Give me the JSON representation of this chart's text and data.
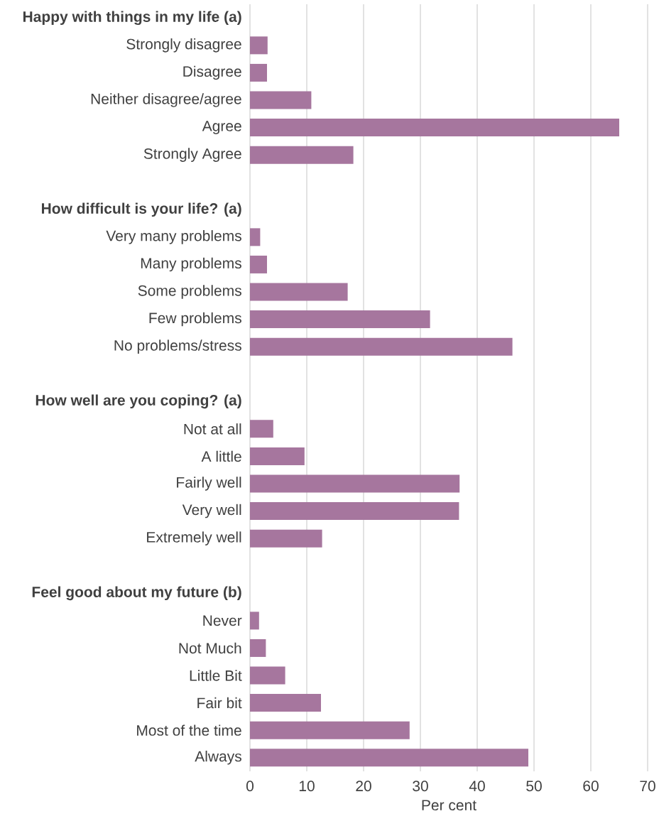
{
  "chart_data": {
    "type": "bar",
    "orientation": "horizontal",
    "xlabel": "Per cent",
    "color": "#a6769e",
    "categories": [
      "Happy with things in my life (a)",
      "Strongly disagree",
      "Disagree",
      "Neither disagree/agree",
      "Agree",
      "Strongly Agree",
      null,
      "How difficult is your life? (a)",
      "Very many problems",
      "Many problems",
      "Some problems",
      "Few problems",
      "No problems/stress",
      null,
      "How well are you coping? (a)",
      "Not at all",
      "A little",
      "Fairly well",
      "Very well",
      "Extremely well",
      null,
      "Feel good about my future (b)",
      "Never",
      "Not Much",
      "Little Bit",
      "Fair bit",
      "Most of the time",
      "Always"
    ],
    "values": [
      null,
      3.1,
      3.0,
      10.8,
      65.0,
      18.2,
      null,
      null,
      1.8,
      3.0,
      17.2,
      31.7,
      46.2,
      null,
      null,
      4.1,
      9.6,
      36.9,
      36.8,
      12.7,
      null,
      null,
      1.6,
      2.8,
      6.2,
      12.5,
      28.1,
      49.0
    ],
    "xlim": [
      0,
      70
    ],
    "xticks": [
      0,
      10,
      20,
      30,
      40,
      50,
      60,
      70
    ],
    "grid": "x"
  }
}
